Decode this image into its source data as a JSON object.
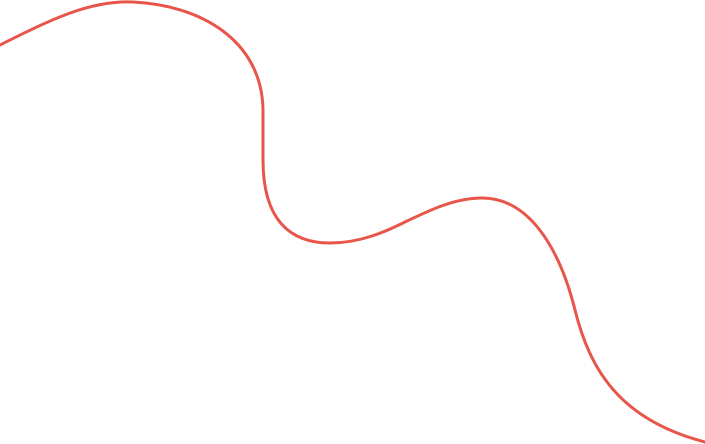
{
  "background_color": "#ffffff",
  "curve": {
    "stroke_color": "#e8554a"
  }
}
